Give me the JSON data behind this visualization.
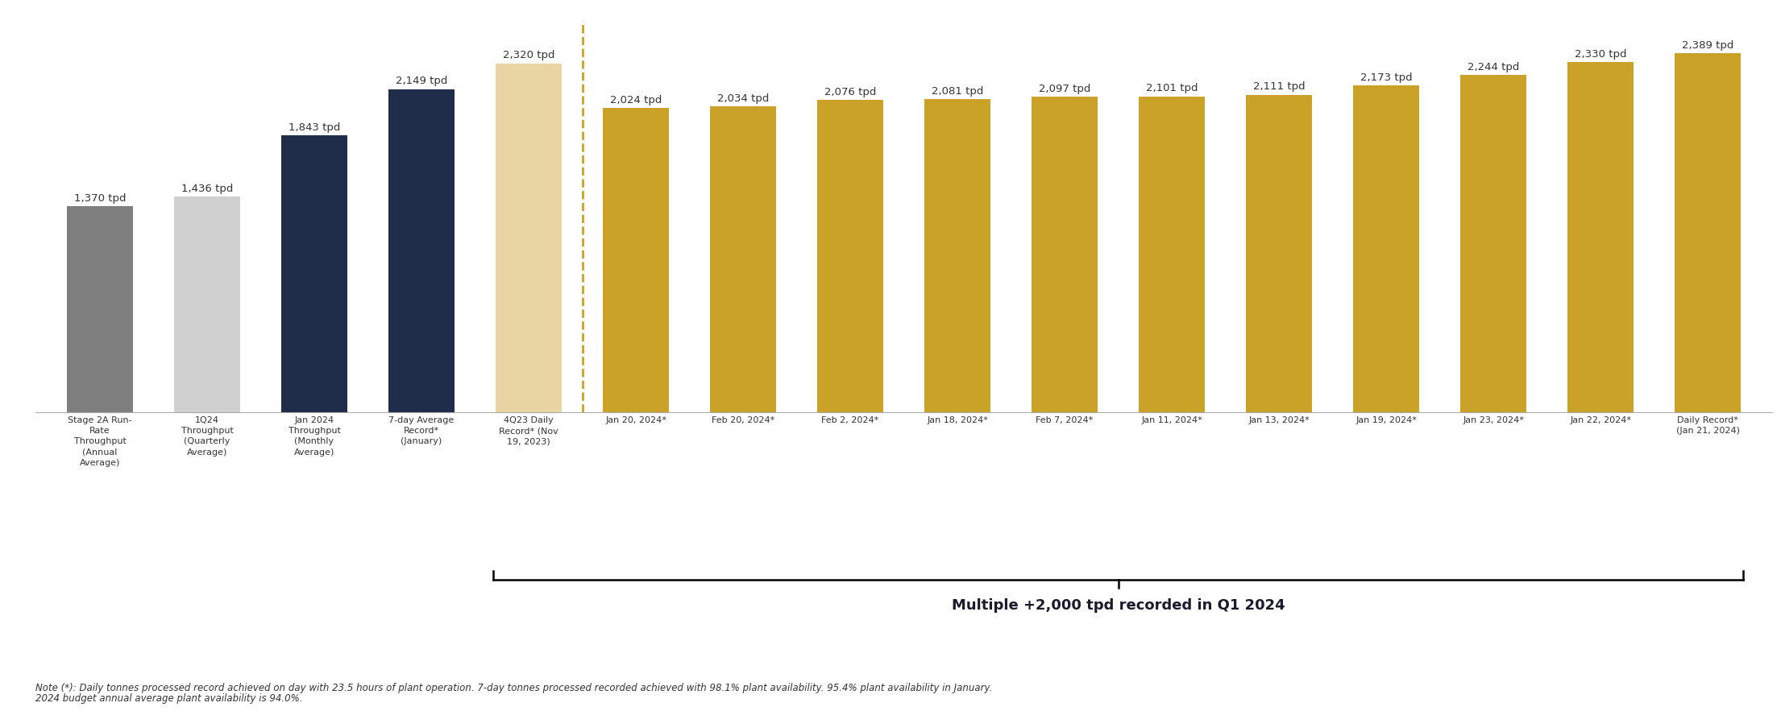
{
  "categories": [
    "Stage 2A Run-\nRate\nThroughput\n(Annual\nAverage)",
    "1Q24\nThroughput\n(Quarterly\nAverage)",
    "Jan 2024\nThroughput\n(Monthly\nAverage)",
    "7-day Average\nRecord*\n(January)",
    "4Q23 Daily\nRecord* (Nov\n19, 2023)",
    "Jan 20, 2024*",
    "Feb 20, 2024*",
    "Feb 2, 2024*",
    "Jan 18, 2024*",
    "Feb 7, 2024*",
    "Jan 11, 2024*",
    "Jan 13, 2024*",
    "Jan 19, 2024*",
    "Jan 23, 2024*",
    "Jan 22, 2024*",
    "Daily Record*\n(Jan 21, 2024)"
  ],
  "values": [
    1370,
    1436,
    1843,
    2149,
    2320,
    2024,
    2034,
    2076,
    2081,
    2097,
    2101,
    2111,
    2173,
    2244,
    2330,
    2389
  ],
  "colors": [
    "#7f7f7f",
    "#d0d0d0",
    "#1f2d4a",
    "#1f2d4a",
    "#e8d5a3",
    "#c9a227",
    "#c9a227",
    "#c9a227",
    "#c9a227",
    "#c9a227",
    "#c9a227",
    "#c9a227",
    "#c9a227",
    "#c9a227",
    "#c9a227",
    "#c9a227"
  ],
  "dashed_line_x": 4.5,
  "bracket_label": "Multiple +2,000 tpd recorded in Q1 2024",
  "note_line1": "Note (*): Daily tonnes processed record achieved on day with 23.5 hours of plant operation. 7-day tonnes processed recorded achieved with 98.1% plant availability. 95.4% plant availability in January.",
  "note_line2": "2024 budget annual average plant availability is 94.0%.",
  "ylim": [
    0,
    2600
  ],
  "background_color": "#ffffff",
  "bar_width": 0.62
}
